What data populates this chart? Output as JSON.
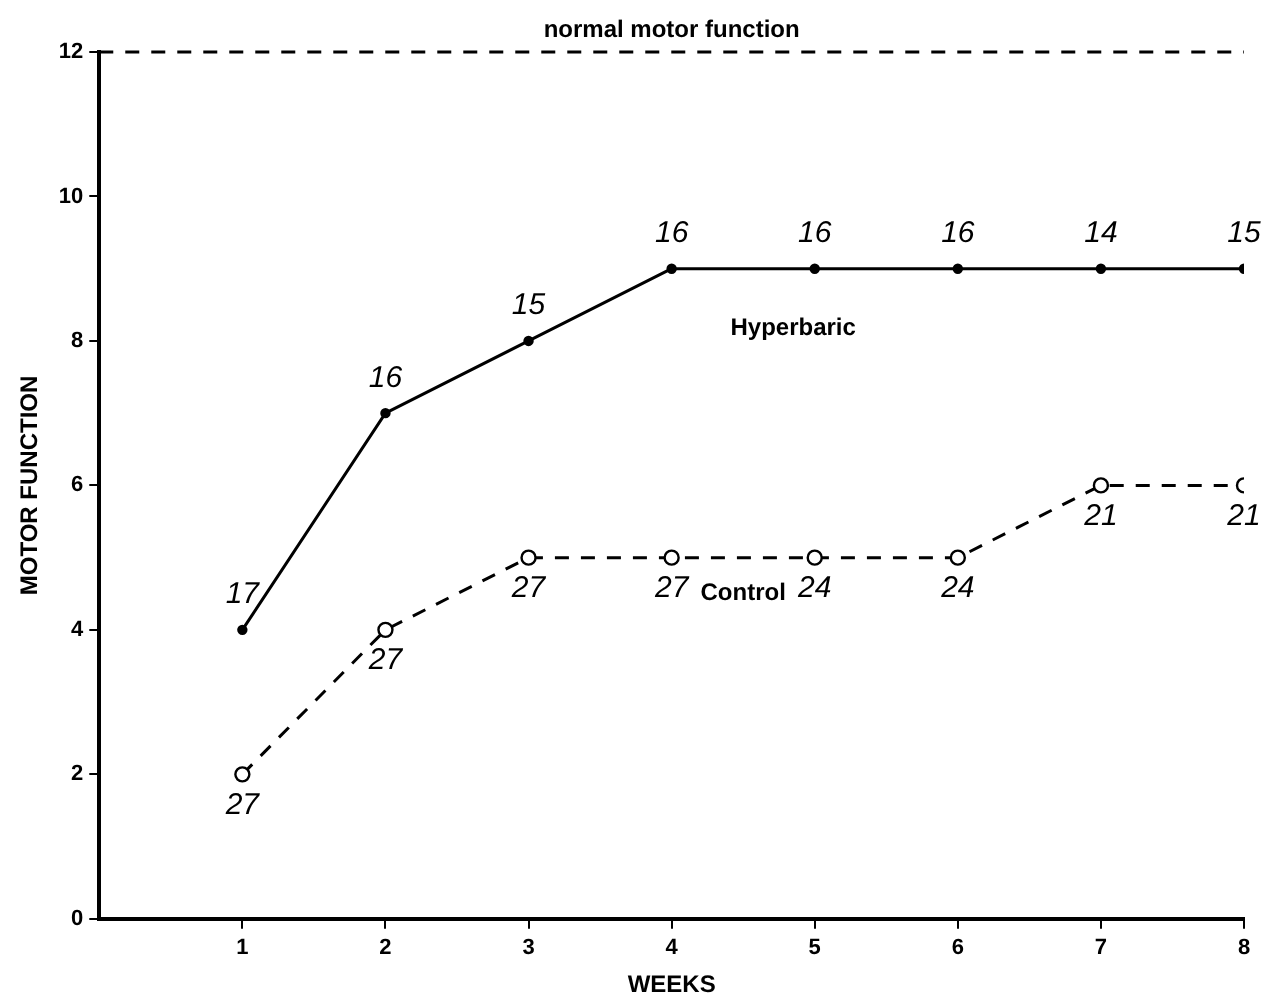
{
  "chart_data": {
    "type": "line",
    "xlabel": "WEEKS",
    "ylabel": "MOTOR FUNCTION",
    "x": [
      1,
      2,
      3,
      4,
      5,
      6,
      7,
      8
    ],
    "series": [
      {
        "name": "Hyperbaric",
        "color": "#000000",
        "marker": "circle",
        "line_style": "solid",
        "values": [
          4,
          7,
          8,
          9,
          9,
          9,
          9,
          9
        ]
      },
      {
        "name": "Control",
        "color": "#000000",
        "marker": "circle",
        "line_style": "dashed",
        "values": [
          2,
          4,
          5,
          5,
          5,
          5,
          6,
          6
        ]
      }
    ],
    "annotations": [
      {
        "text": "17",
        "x": 1,
        "y": 4
      },
      {
        "text": "16",
        "x": 2,
        "y": 7
      },
      {
        "text": "15",
        "x": 3,
        "y": 8
      },
      {
        "text": "16",
        "x": 4,
        "y": 9
      },
      {
        "text": "16",
        "x": 5,
        "y": 9
      },
      {
        "text": "16",
        "x": 6,
        "y": 9
      },
      {
        "text": "14",
        "x": 7,
        "y": 9
      },
      {
        "text": "15",
        "x": 8,
        "y": 9
      },
      {
        "text": "27",
        "x": 1,
        "y": 2
      },
      {
        "text": "27",
        "x": 2,
        "y": 4
      },
      {
        "text": "27",
        "x": 3,
        "y": 5
      },
      {
        "text": "27",
        "x": 4,
        "y": 5
      },
      {
        "text": "24",
        "x": 5,
        "y": 5
      },
      {
        "text": "24",
        "x": 6,
        "y": 5
      },
      {
        "text": "21",
        "x": 7,
        "y": 6
      },
      {
        "text": "21",
        "x": 8,
        "y": 6
      }
    ],
    "xlim": [
      0,
      8
    ],
    "xticks": [
      1,
      2,
      3,
      4,
      5,
      6,
      7,
      8
    ],
    "ylim": [
      0,
      12
    ],
    "yticks": [
      0,
      2,
      4,
      6,
      8,
      10,
      12
    ],
    "ref_lines": [
      {
        "axis": "y",
        "value": 12,
        "label": "normal motor function",
        "line_style": "dashed"
      }
    ],
    "grid": false,
    "legend": false
  }
}
